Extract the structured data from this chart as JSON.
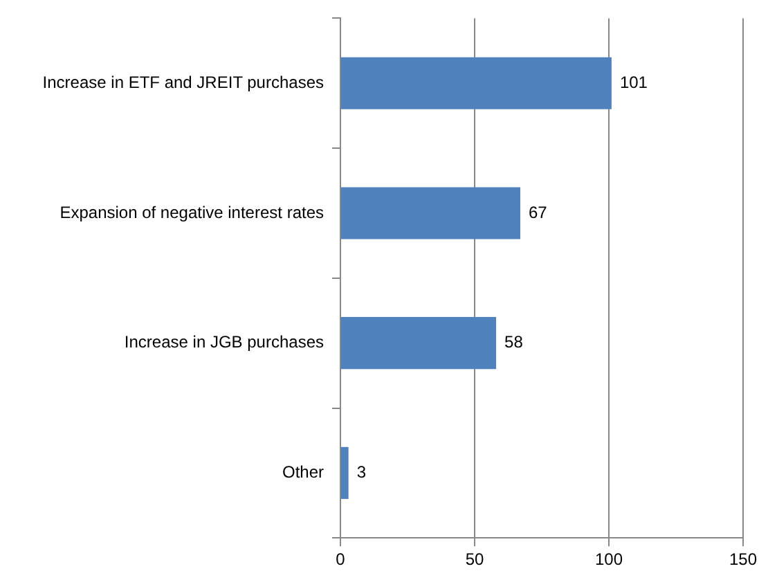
{
  "chart_data": {
    "type": "bar",
    "orientation": "horizontal",
    "categories": [
      "Increase in ETF and JREIT purchases",
      "Expansion of negative interest rates",
      "Increase in JGB purchases",
      "Other"
    ],
    "values": [
      101,
      67,
      58,
      3
    ],
    "color": "#4f81bd",
    "xlim": [
      0,
      150
    ],
    "xticks": [
      0,
      50,
      100,
      150
    ],
    "grid": "x",
    "data_labels": true,
    "legend": false
  }
}
